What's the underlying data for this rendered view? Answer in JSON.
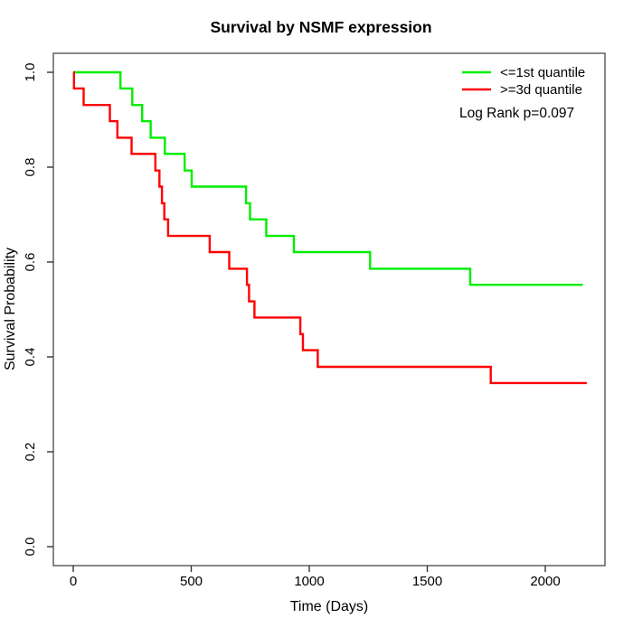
{
  "chart_data": {
    "type": "line",
    "subtype": "kaplan-meier-step",
    "title": "Survival by NSMF expression",
    "xlabel": "Time (Days)",
    "ylabel": "Survival Probability",
    "xlim": [
      0,
      2200
    ],
    "ylim": [
      0.0,
      1.0
    ],
    "x_ticks": [
      0,
      500,
      1000,
      1500,
      2000
    ],
    "y_ticks": [
      0.0,
      0.2,
      0.4,
      0.6,
      0.8,
      1.0
    ],
    "grid": false,
    "legend_position": "top-right-inside",
    "annotation": "Log Rank p=0.097",
    "series": [
      {
        "name": "<=1st quantile",
        "color": "#00EE00",
        "n_at_start": 29,
        "steps": [
          [
            0,
            1.0
          ],
          [
            200,
            0.966
          ],
          [
            250,
            0.931
          ],
          [
            292,
            0.897
          ],
          [
            328,
            0.862
          ],
          [
            388,
            0.828
          ],
          [
            472,
            0.793
          ],
          [
            502,
            0.759
          ],
          [
            732,
            0.724
          ],
          [
            749,
            0.69
          ],
          [
            818,
            0.655
          ],
          [
            935,
            0.621
          ],
          [
            1258,
            0.586
          ],
          [
            1682,
            0.552
          ]
        ],
        "end_time": 2159,
        "final_survival": 0.552
      },
      {
        "name": ">=3d quantile",
        "color": "#FF0000",
        "n_at_start": 29,
        "steps": [
          [
            0,
            1.0
          ],
          [
            3,
            0.966
          ],
          [
            44,
            0.931
          ],
          [
            155,
            0.897
          ],
          [
            187,
            0.862
          ],
          [
            247,
            0.828
          ],
          [
            348,
            0.793
          ],
          [
            365,
            0.759
          ],
          [
            376,
            0.724
          ],
          [
            386,
            0.69
          ],
          [
            402,
            0.655
          ],
          [
            578,
            0.621
          ],
          [
            661,
            0.586
          ],
          [
            736,
            0.552
          ],
          [
            745,
            0.517
          ],
          [
            768,
            0.483
          ],
          [
            962,
            0.448
          ],
          [
            973,
            0.414
          ],
          [
            1036,
            0.379
          ],
          [
            1769,
            0.345
          ]
        ],
        "end_time": 2176,
        "final_survival": 0.345
      }
    ]
  }
}
